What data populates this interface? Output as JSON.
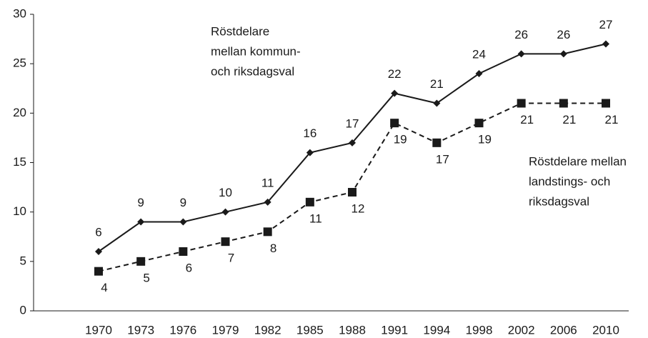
{
  "chart_data": {
    "type": "line",
    "categories": [
      "1970",
      "1973",
      "1976",
      "1979",
      "1982",
      "1985",
      "1988",
      "1991",
      "1994",
      "1998",
      "2002",
      "2006",
      "2010"
    ],
    "series": [
      {
        "name_lines": [
          "Röstdelare",
          "mellan kommun-",
          "och riksdagsval"
        ],
        "color": "#1a1a1a",
        "marker": "diamond",
        "dash": false,
        "values": [
          6,
          9,
          9,
          10,
          11,
          16,
          17,
          22,
          21,
          24,
          26,
          26,
          27
        ]
      },
      {
        "name_lines": [
          "Röstdelare mellan",
          "landstings- och",
          "riksdagsval"
        ],
        "color": "#1a1a1a",
        "marker": "square",
        "dash": true,
        "values": [
          4,
          5,
          6,
          7,
          8,
          11,
          12,
          19,
          17,
          19,
          21,
          21,
          21
        ]
      }
    ],
    "ylim": [
      0,
      30
    ],
    "yticks": [
      0,
      5,
      10,
      15,
      20,
      25,
      30
    ],
    "grid": false
  }
}
